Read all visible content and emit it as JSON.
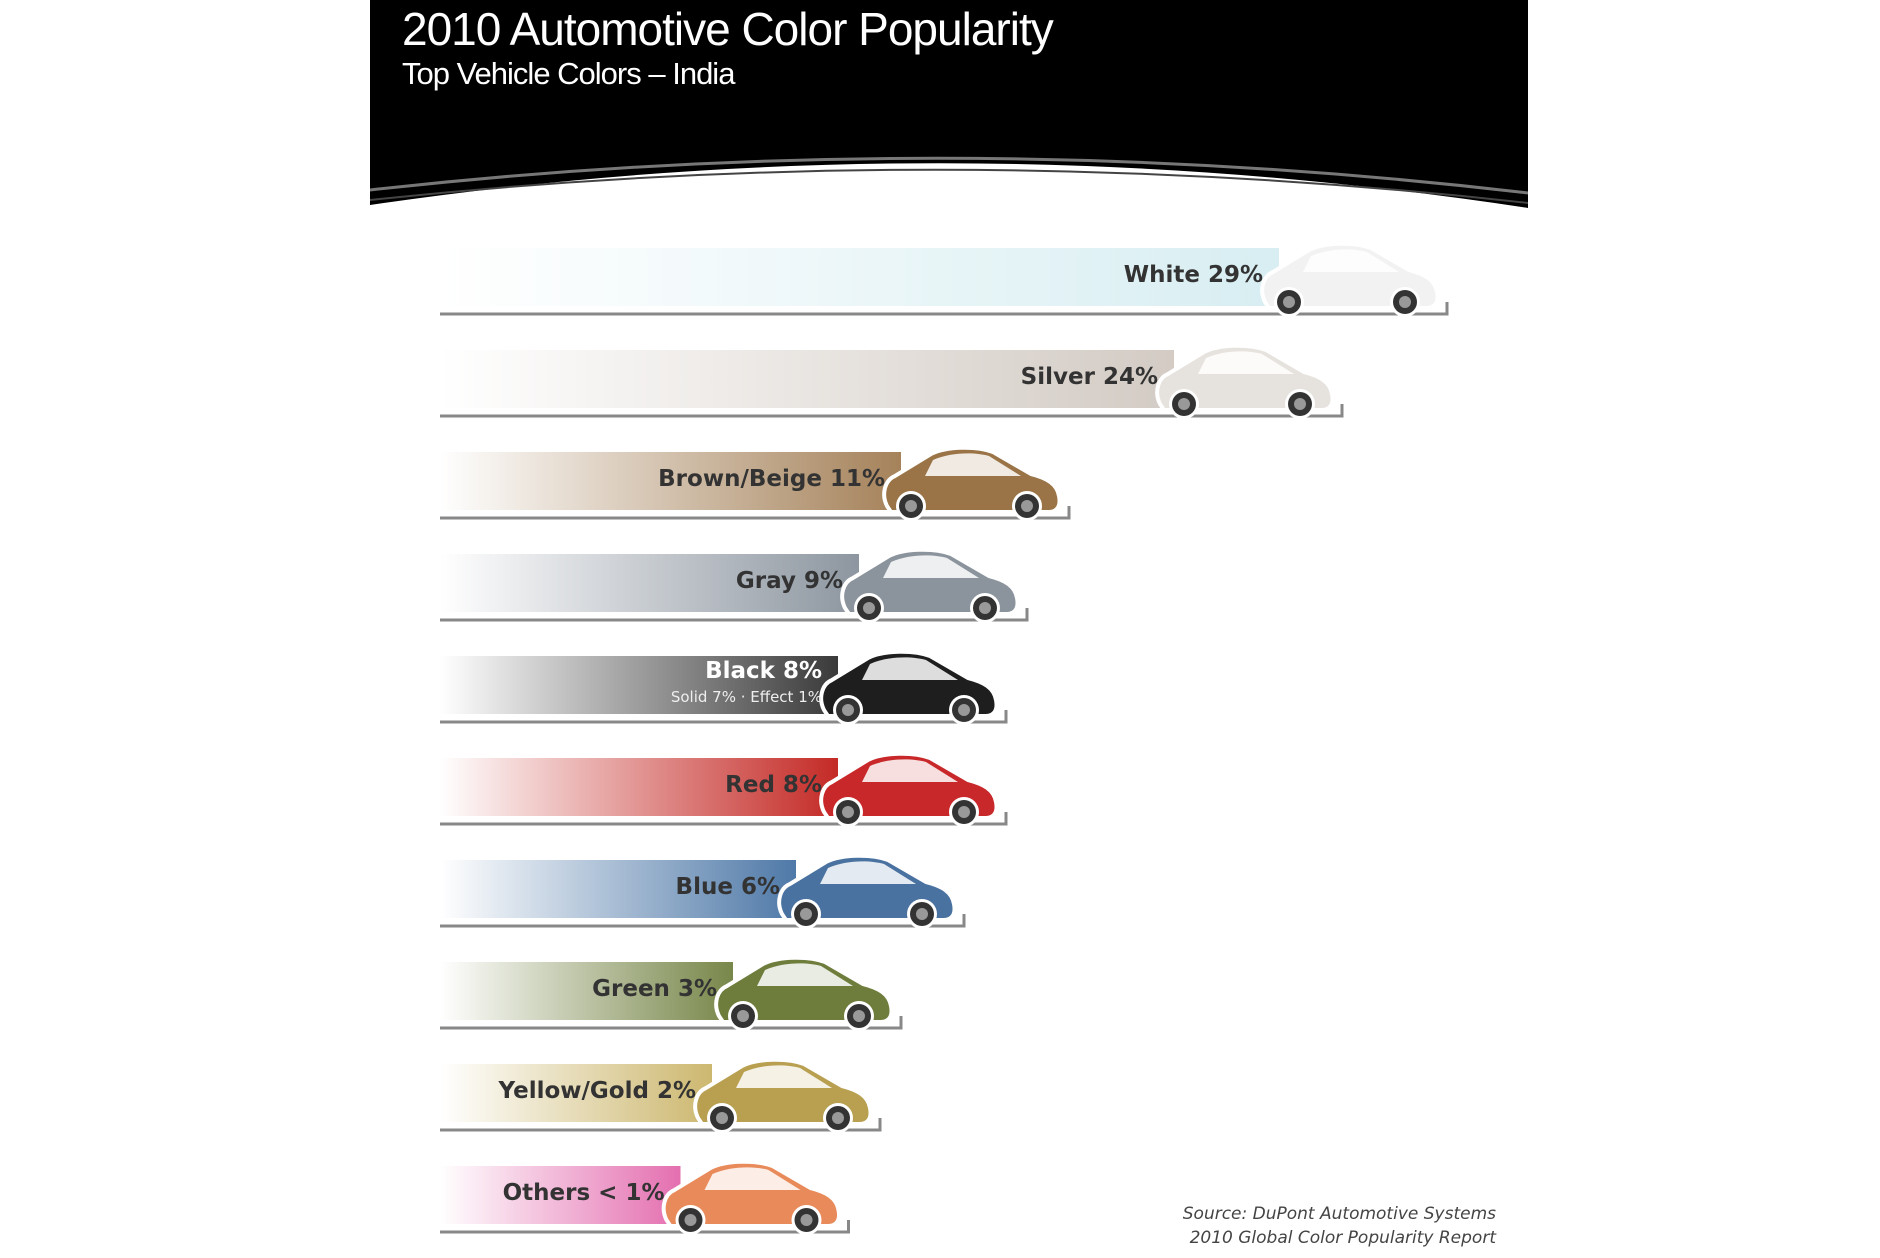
{
  "chart_data": {
    "type": "bar",
    "orientation": "horizontal",
    "title": "2010 Automotive Color Popularity",
    "subtitle": "Top Vehicle Colors – India",
    "source": [
      "Source: DuPont Automotive Systems",
      "2010 Global Color Popularity Report"
    ],
    "unit": "%",
    "bars": [
      {
        "label": "White 29%",
        "category": "White",
        "value": 29,
        "color": "#d8eef2",
        "car": "#f2f2f2"
      },
      {
        "label": "Silver 24%",
        "category": "Silver",
        "value": 24,
        "color": "#d3cbc4",
        "car": "#e6e2de"
      },
      {
        "label": "Brown/Beige 11%",
        "category": "Brown/Beige",
        "value": 11,
        "color": "#a5825a",
        "car": "#9a7446"
      },
      {
        "label": "Gray 9%",
        "category": "Gray",
        "value": 9,
        "color": "#8d96a0",
        "car": "#8b939c"
      },
      {
        "label": "Black 8%",
        "category": "Black",
        "value": 8,
        "sublabel": "Solid 7% · Effect 1%",
        "color": "#3a3a3a",
        "car": "#1e1e1e",
        "light": true
      },
      {
        "label": "Red 8%",
        "category": "Red",
        "value": 8,
        "color": "#c42a26",
        "car": "#c8282a"
      },
      {
        "label": "Blue 6%",
        "category": "Blue",
        "value": 6,
        "color": "#4f79a8",
        "car": "#4a72a0"
      },
      {
        "label": "Green 3%",
        "category": "Green",
        "value": 3,
        "color": "#78874a",
        "car": "#6e7d3c"
      },
      {
        "label": "Yellow/Gold 2%",
        "category": "Yellow/Gold",
        "value": 2,
        "color": "#cdb870",
        "car": "#b8a050"
      },
      {
        "label": "Others < 1%",
        "category": "Others",
        "value": 0.5,
        "color": "#e46fb0",
        "car": "#e88a5a"
      }
    ]
  }
}
